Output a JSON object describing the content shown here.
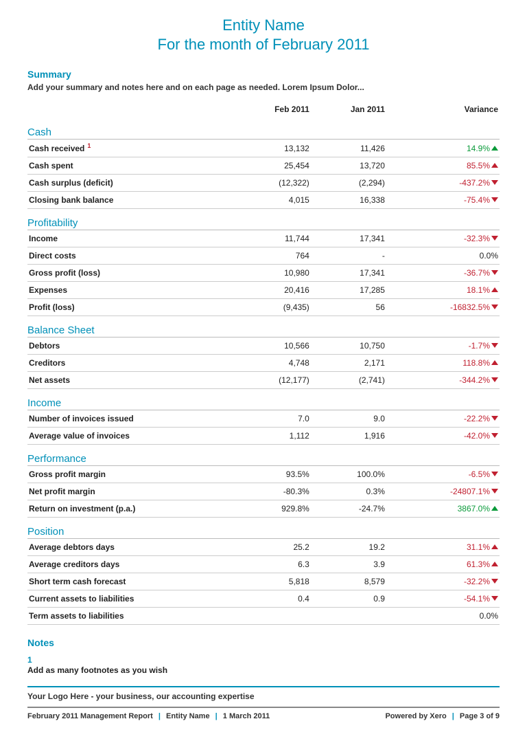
{
  "header": {
    "entity": "Entity Name",
    "period": "For the month of February 2011"
  },
  "summary": {
    "heading": "Summary",
    "text": "Add your summary and notes here and on each page as needed. Lorem Ipsum Dolor..."
  },
  "table": {
    "columns": {
      "label": "",
      "col1": "Feb 2011",
      "col2": "Jan 2011",
      "variance": "Variance"
    },
    "groups": [
      {
        "title": "Cash",
        "rows": [
          {
            "label": "Cash received",
            "footnote": "1",
            "v1": "13,132",
            "v2": "11,426",
            "var": "14.9%",
            "dir": "up",
            "tone": "pos"
          },
          {
            "label": "Cash spent",
            "v1": "25,454",
            "v2": "13,720",
            "var": "85.5%",
            "dir": "up",
            "tone": "neg"
          },
          {
            "label": "Cash surplus (deficit)",
            "v1": "(12,322)",
            "v2": "(2,294)",
            "var": "-437.2%",
            "dir": "down",
            "tone": "neg"
          },
          {
            "label": "Closing bank balance",
            "v1": "4,015",
            "v2": "16,338",
            "var": "-75.4%",
            "dir": "down",
            "tone": "neg"
          }
        ]
      },
      {
        "title": "Profitability",
        "rows": [
          {
            "label": "Income",
            "v1": "11,744",
            "v2": "17,341",
            "var": "-32.3%",
            "dir": "down",
            "tone": "neg"
          },
          {
            "label": "Direct costs",
            "v1": "764",
            "v2": "-",
            "var": "0.0%",
            "dir": "",
            "tone": "zero"
          },
          {
            "label": "Gross profit (loss)",
            "v1": "10,980",
            "v2": "17,341",
            "var": "-36.7%",
            "dir": "down",
            "tone": "neg"
          },
          {
            "label": "Expenses",
            "v1": "20,416",
            "v2": "17,285",
            "var": "18.1%",
            "dir": "up",
            "tone": "neg"
          },
          {
            "label": "Profit (loss)",
            "v1": "(9,435)",
            "v2": "56",
            "var": "-16832.5%",
            "dir": "down",
            "tone": "neg"
          }
        ]
      },
      {
        "title": "Balance Sheet",
        "rows": [
          {
            "label": "Debtors",
            "v1": "10,566",
            "v2": "10,750",
            "var": "-1.7%",
            "dir": "down",
            "tone": "neg"
          },
          {
            "label": "Creditors",
            "v1": "4,748",
            "v2": "2,171",
            "var": "118.8%",
            "dir": "up",
            "tone": "neg"
          },
          {
            "label": "Net assets",
            "v1": "(12,177)",
            "v2": "(2,741)",
            "var": "-344.2%",
            "dir": "down",
            "tone": "neg"
          }
        ]
      },
      {
        "title": "Income",
        "rows": [
          {
            "label": "Number of invoices issued",
            "v1": "7.0",
            "v2": "9.0",
            "var": "-22.2%",
            "dir": "down",
            "tone": "neg"
          },
          {
            "label": "Average value of invoices",
            "v1": "1,112",
            "v2": "1,916",
            "var": "-42.0%",
            "dir": "down",
            "tone": "neg"
          }
        ]
      },
      {
        "title": "Performance",
        "rows": [
          {
            "label": "Gross profit margin",
            "v1": "93.5%",
            "v2": "100.0%",
            "var": "-6.5%",
            "dir": "down",
            "tone": "neg"
          },
          {
            "label": "Net profit margin",
            "v1": "-80.3%",
            "v2": "0.3%",
            "var": "-24807.1%",
            "dir": "down",
            "tone": "neg"
          },
          {
            "label": "Return on investment (p.a.)",
            "v1": "929.8%",
            "v2": "-24.7%",
            "var": "3867.0%",
            "dir": "up",
            "tone": "pos"
          }
        ]
      },
      {
        "title": "Position",
        "rows": [
          {
            "label": "Average debtors days",
            "v1": "25.2",
            "v2": "19.2",
            "var": "31.1%",
            "dir": "up",
            "tone": "neg"
          },
          {
            "label": "Average creditors days",
            "v1": "6.3",
            "v2": "3.9",
            "var": "61.3%",
            "dir": "up",
            "tone": "neg"
          },
          {
            "label": "Short term cash forecast",
            "v1": "5,818",
            "v2": "8,579",
            "var": "-32.2%",
            "dir": "down",
            "tone": "neg"
          },
          {
            "label": "Current assets to liabilities",
            "v1": "0.4",
            "v2": "0.9",
            "var": "-54.1%",
            "dir": "down",
            "tone": "neg"
          },
          {
            "label": "Term assets to liabilities",
            "v1": "",
            "v2": "",
            "var": "0.0%",
            "dir": "",
            "tone": "zero"
          }
        ]
      }
    ]
  },
  "notes": {
    "heading": "Notes",
    "items": [
      {
        "num": "1",
        "text": "Add as many footnotes as you wish"
      }
    ]
  },
  "tagline": "Your Logo Here - your business, our accounting expertise",
  "footer": {
    "left": {
      "report": "February 2011 Management Report",
      "entity": "Entity Name",
      "date": "1 March 2011"
    },
    "right": {
      "powered": "Powered by Xero",
      "page": "Page 3 of 9"
    }
  },
  "style": {
    "accent_color": "#0090b8",
    "positive_color": "#0a9a3a",
    "negative_color": "#c02030",
    "border_color": "#cccccc",
    "background": "#ffffff",
    "title_fontsize": 22,
    "body_fontsize": 12
  }
}
